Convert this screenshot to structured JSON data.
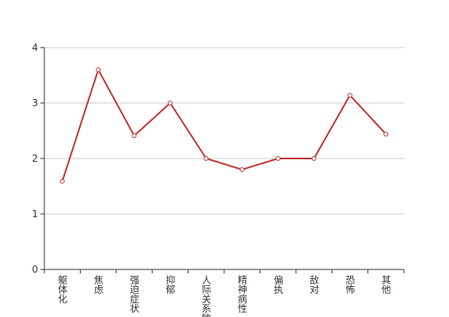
{
  "chart_data": {
    "type": "line",
    "categories": [
      "躯体化",
      "焦虑",
      "强迫症状",
      "抑郁",
      "人际关系敏感",
      "精神病性",
      "偏执",
      "敌对",
      "恐怖",
      "其他"
    ],
    "values": [
      1.59,
      3.6,
      2.41,
      3.0,
      2.0,
      1.8,
      2.0,
      2.0,
      3.14,
      2.44
    ],
    "color": "#c23531",
    "ylim": [
      0,
      4
    ],
    "yticks": [
      0,
      1,
      2,
      3,
      4
    ],
    "grid": true
  }
}
